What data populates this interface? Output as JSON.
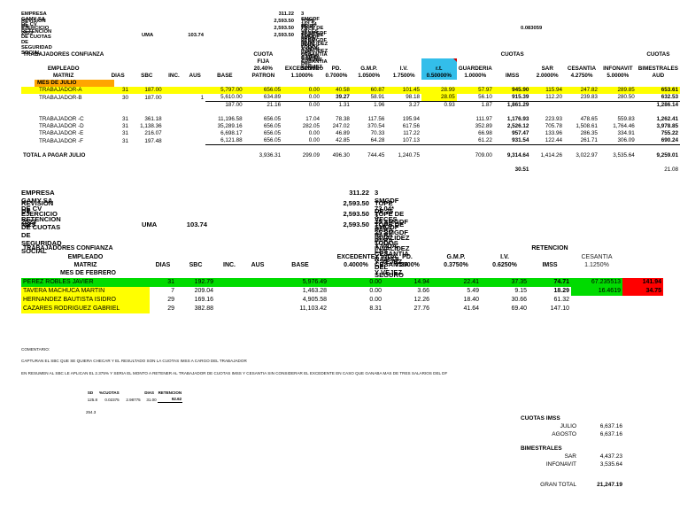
{
  "colors": {
    "highlight_yellow": "#FFFF00",
    "highlight_orange": "#FFA500",
    "highlight_blue": "#33BEEA",
    "highlight_green": "#00DB00",
    "highlight_red": "#FF0000"
  },
  "header1": {
    "company": "EMPRESA GAMY SA DE CV",
    "title": "REVISION DE RETENCION DE CUOTAS DE SEGURIDAD SOCIAL",
    "exercise": "EJERCICIO 2023",
    "uma_label": "UMA",
    "uma_value": "103.74",
    "amounts": [
      "311.22",
      "2,593.50",
      "2,593.50",
      "2,593.50"
    ],
    "notes": [
      "3 SMGDF 103.74 * 3",
      "TOPE DE 25 VECES SMGDF PARA TODOS LAS RAMAS DEL SEGURO",
      "TOPE DE 25 SMGDF PARA INVALIDEZ Y VIDA, CESANTIA Y VEJEZ",
      "TOPE DE 25 SMGDF PARA INVALIDEZ Y VIDA, CESANTIA Y VEJEZ"
    ],
    "factor": "0.083059"
  },
  "table1": {
    "name": "cuotas-julio-table",
    "widths": [
      90,
      28,
      38,
      24,
      24,
      44,
      44,
      44,
      34,
      40,
      40,
      40,
      42,
      42,
      38,
      40,
      42,
      46
    ],
    "group": {
      "0": "TRABAJADORES CONFIANZA",
      "6": "CUOTA",
      "13": "CUOTAS",
      "17": "CUOTAS"
    },
    "columns": [
      {
        "lines": [
          "EMPLEADO",
          "MATRIZ"
        ]
      },
      {
        "lines": [
          "DIAS"
        ]
      },
      {
        "lines": [
          "SBC"
        ]
      },
      {
        "lines": [
          "INC."
        ]
      },
      {
        "lines": [
          "AUS"
        ]
      },
      {
        "lines": [
          "BASE"
        ]
      },
      {
        "lines": [
          "FIJA",
          "20.40%",
          "PATRON"
        ]
      },
      {
        "lines": [
          "EXCEDENTE",
          "1.1000%"
        ]
      },
      {
        "lines": [
          "PD.",
          "0.7000%"
        ]
      },
      {
        "lines": [
          "G.M.P.",
          "1.0500%"
        ]
      },
      {
        "lines": [
          "I.V.",
          "1.7500%"
        ]
      },
      {
        "lines": [
          "r.t.",
          "0.50000%"
        ],
        "hl": 1
      },
      {
        "lines": [
          "GUARDERIA",
          "1.0000%"
        ]
      },
      {
        "lines": [
          "IMSS"
        ]
      },
      {
        "lines": [
          "SAR",
          "2.0000%"
        ]
      },
      {
        "lines": [
          "CESANTIA",
          "4.2750%"
        ]
      },
      {
        "lines": [
          "INFONAVIT",
          "5.0000%"
        ]
      },
      {
        "lines": [
          "BIMESTRALES",
          "AUD"
        ]
      }
    ],
    "section_label": "MES DE JULIO",
    "rows": [
      {
        "name": "row-trabajador-a",
        "bg": "yellow",
        "ind": 1,
        "cells": [
          "TRABAJADOR-A",
          "31",
          "187.00",
          "",
          "",
          "5,797.00",
          "656.05",
          "0.00",
          "40.58",
          "60.87",
          "101.45",
          "28.99",
          "57.97",
          {
            "v": "945.90",
            "b": 1
          },
          "115.94",
          "247.82",
          "289.85",
          {
            "v": "653.61",
            "b": 1
          }
        ]
      },
      {
        "name": "row-trabajador-b",
        "ind": 1,
        "cells": [
          "TRABAJADOR-B",
          "30",
          "187.00",
          "",
          "1",
          {
            "v": "5,610.00",
            "bb": 1
          },
          {
            "v": "634.89",
            "bb": 1
          },
          {
            "v": "0.00",
            "bb": 1
          },
          {
            "v": "39.27",
            "b": 1,
            "bb": 1
          },
          {
            "v": "58.91",
            "bb": 1
          },
          {
            "v": "98.18",
            "bb": 1
          },
          {
            "v": "28.05",
            "bg": "yellow",
            "bb": 1
          },
          {
            "v": "56.10",
            "bb": 1
          },
          {
            "v": "915.39",
            "b": 1,
            "bb": 1
          },
          {
            "v": "112.20",
            "bb": 1
          },
          {
            "v": "239.83",
            "bb": 1
          },
          {
            "v": "280.50",
            "bb": 1
          },
          {
            "v": "632.53",
            "b": 1,
            "bb": 1
          }
        ]
      },
      {
        "name": "row-diferencia-ab",
        "cells": [
          "",
          "",
          "",
          "",
          "",
          "187.00",
          "21.16",
          "0.00",
          "1.31",
          "1.96",
          "3.27",
          "0.93",
          "1.87",
          {
            "v": "1,861.29",
            "b": 1
          },
          "",
          "",
          "",
          {
            "v": "1,286.14",
            "b": 1
          }
        ]
      },
      {
        "name": "spacer-row",
        "cells": []
      },
      {
        "name": "row-trabajador-c",
        "ind": 1,
        "cells": [
          "TRABAJADOR -C",
          "31",
          "361.18",
          "",
          "",
          "11,196.58",
          "656.05",
          "17.04",
          "78.38",
          "117.56",
          "195.94",
          "",
          "111.97",
          {
            "v": "1,176.93",
            "b": 1
          },
          "223.93",
          "478.65",
          "559.83",
          {
            "v": "1,262.41",
            "b": 1
          }
        ]
      },
      {
        "name": "row-trabajador-d",
        "ind": 1,
        "cells": [
          "TRABAJADOR -D",
          "31",
          "1,138.36",
          "",
          "",
          "35,289.16",
          "656.05",
          "282.05",
          "247.02",
          "370.54",
          "617.56",
          "",
          "352.89",
          {
            "v": "2,526.12",
            "b": 1
          },
          "705.78",
          "1,508.61",
          "1,764.46",
          {
            "v": "3,978.85",
            "b": 1
          }
        ]
      },
      {
        "name": "row-trabajador-e",
        "ind": 1,
        "cells": [
          "TRABAJADOR -E",
          "31",
          "216.07",
          "",
          "",
          "6,698.17",
          "656.05",
          "0.00",
          "46.89",
          "70.33",
          "117.22",
          "",
          "66.98",
          {
            "v": "957.47",
            "b": 1
          },
          "133.96",
          "286.35",
          "334.91",
          {
            "v": "755.22",
            "b": 1
          }
        ]
      },
      {
        "name": "row-trabajador-f",
        "ind": 1,
        "cells": [
          "TRABAJADOR -F",
          "31",
          "197.48",
          "",
          "",
          {
            "v": "6,121.88",
            "bb": 1
          },
          {
            "v": "656.05",
            "bb": 1
          },
          {
            "v": "0.00",
            "bb": 1
          },
          {
            "v": "42.85",
            "bb": 1
          },
          {
            "v": "64.28",
            "bb": 1
          },
          {
            "v": "107.13",
            "bb": 1
          },
          {
            "v": "",
            "bb": 1
          },
          {
            "v": "61.22",
            "bb": 1
          },
          {
            "v": "931.54",
            "b": 1,
            "bb": 1
          },
          {
            "v": "122.44",
            "bb": 1
          },
          {
            "v": "261.71",
            "bb": 1
          },
          {
            "v": "306.09",
            "bb": 1
          },
          {
            "v": "690.24",
            "b": 1,
            "bb": 1
          }
        ]
      },
      {
        "name": "spacer-row",
        "cells": []
      },
      {
        "name": "row-total-julio",
        "cells": [
          {
            "v": "TOTAL A PAGAR JULIO",
            "b": 1
          },
          "",
          "",
          "",
          "",
          "",
          "3,936.31",
          "299.09",
          "496.30",
          "744.45",
          "1,240.75",
          "",
          "709.00",
          {
            "v": "9,314.64",
            "b": 1
          },
          "1,414.26",
          "3,022.97",
          "3,535.64",
          {
            "v": "9,259.01",
            "b": 1
          }
        ]
      },
      {
        "name": "spacer-row",
        "cells": []
      },
      {
        "name": "row-diferencia-total",
        "cells": [
          "",
          "",
          "",
          "",
          "",
          "",
          "",
          "",
          "",
          "",
          "",
          "",
          "",
          {
            "v": "30.51",
            "b": 1
          },
          "",
          "",
          "",
          "21.08"
        ]
      }
    ]
  },
  "header2": {
    "company": "EMPRESA GAMY SA DE CV",
    "title": "REVISION DE RETENCION DE CUOTAS DE SEGURIDAD SOCIAL",
    "exercise": "EJERCICIO 2023",
    "mes_label": "MES",
    "uma_label": "UMA",
    "uma_value": "103.74",
    "amounts": [
      "311.22",
      "2,593.50",
      "2,593.50",
      "2,593.50"
    ],
    "notes": [
      "3 SMGDF 73.04* 3",
      "TOPE DE 25 VECES SMGDF PARA TODOS LAS RAMAS DEL SEGURO",
      "TOPE DE 25 SMGDF PARA INVALIDEZ Y VIDA, CESANTIA Y VEJEZ",
      "TOPE DE 25 SMGDF PARA INVALIDEZ Y VIDA, CESANTIA Y VEJEZ"
    ]
  },
  "table2": {
    "name": "retencion-febrero-table",
    "widths": [
      145,
      30,
      44,
      32,
      32,
      64,
      62,
      54,
      56,
      54,
      48,
      58,
      46
    ],
    "group": {
      "0": "TRABAJADORES CONFIANZA",
      "10": "RETENCION"
    },
    "columns": [
      {
        "lines": [
          "EMPLEADO",
          "MATRIZ"
        ]
      },
      {
        "lines": [
          "DIAS"
        ]
      },
      {
        "lines": [
          "SBC"
        ]
      },
      {
        "lines": [
          "INC."
        ]
      },
      {
        "lines": [
          "AUS"
        ]
      },
      {
        "lines": [
          "BASE"
        ]
      },
      {
        "lines": [
          "EXCEDENTE",
          "0.4000%"
        ]
      },
      {
        "lines": [
          "PD.",
          "0.2500%"
        ]
      },
      {
        "lines": [
          "G.M.P.",
          "0.3750%"
        ]
      },
      {
        "lines": [
          "I.V.",
          "0.6250%"
        ]
      },
      {
        "lines": [
          "IMSS"
        ]
      },
      {
        "lines": [
          "CESANTIA",
          "1.1250%"
        ],
        "light": 1
      },
      {
        "lines": [
          ""
        ]
      }
    ],
    "section_label": "MES DE FEBRERO",
    "rows": [
      {
        "name": "row-perez-robles-javier",
        "bg": "green",
        "cells": [
          "PEREZ ROBLES JAVIER",
          "31",
          "192.79",
          "",
          "",
          "5,976.49",
          "0.00",
          "14.94",
          "22.41",
          "37.35",
          {
            "v": "74.71",
            "b": 1
          },
          "67.235513",
          {
            "v": "141.94",
            "b": 1,
            "bg": "red"
          }
        ]
      },
      {
        "name": "row-tavera-machuca-martin",
        "cells": [
          {
            "v": "TAVERA MACHUCA MARTIN",
            "bg": "yellow"
          },
          "7",
          "209.04",
          "",
          "",
          "1,463.28",
          "0.00",
          "3.66",
          "5.49",
          "9.15",
          {
            "v": "18.29",
            "b": 1
          },
          {
            "v": "16.4619",
            "bg": "green"
          },
          {
            "v": "34.75",
            "b": 1,
            "bg": "red"
          }
        ]
      },
      {
        "name": "row-hernandez-bautista-isidro",
        "cells": [
          {
            "v": "HERNANDEZ BAUTISTA ISIDRO",
            "bg": "yellow"
          },
          "29",
          "169.16",
          "",
          "",
          "4,905.58",
          "0.00",
          "12.26",
          "18.40",
          "30.66",
          "61.32",
          "",
          ""
        ]
      },
      {
        "name": "row-cazares-rodriguez-gabriel",
        "cells": [
          {
            "v": "CAZARES RODRIGUEZ GABRIEL",
            "bg": "yellow"
          },
          "29",
          "382.88",
          "",
          "",
          "11,103.42",
          "8.31",
          "27.76",
          "41.64",
          "69.40",
          "147.10",
          "",
          ""
        ]
      }
    ]
  },
  "commentary": {
    "title": "COMENTARIO:",
    "line1": "CAPTURAN EL SBC QUE SE QUIERA CHECAR Y EL RESULTADO SON LA CUOTAS IMSS A CARGO DEL TRABAJADOR",
    "line2": "EN RESUMEN AL SBC LE APLICAN EL 2.375% Y SERIA EL MONTO A RETENER AL TRABAJADOR DE CUOTAS IMSS Y CESANTIA SIN CONSIDERAR EL EXCEDENTE EN CASO QUE GANABA MAS DE TRES SALARIOS DEL DF"
  },
  "minitable": {
    "name": "retention-check-table",
    "widths": [
      18,
      22,
      24,
      18,
      26
    ],
    "allnum": 1,
    "columns": [
      {
        "lines": [
          "SD"
        ]
      },
      {
        "lines": [
          "%CUOTAS"
        ]
      },
      {
        "lines": [
          ""
        ]
      },
      {
        "lines": [
          "DIAS"
        ]
      },
      {
        "lines": [
          "RETENCION"
        ]
      }
    ],
    "rows": [
      {
        "name": "retention-calc-row",
        "cells": [
          "125.8",
          "0.02375",
          "2.98775",
          "31.00",
          {
            "v": "92.62",
            "b": 1,
            "bb": 1
          }
        ]
      }
    ]
  },
  "note_below": "254.3",
  "summary": {
    "imss_title": "CUOTAS IMSS",
    "imss_rows": [
      {
        "label": "JULIO",
        "value": "6,637.16"
      },
      {
        "label": "AGOSTO",
        "value": "6,637.16"
      }
    ],
    "bim_title": "BIMESTRALES",
    "bim_rows": [
      {
        "label": "SAR",
        "value": "4,437.23"
      },
      {
        "label": "INFONAVIT",
        "value": "3,535.64"
      }
    ],
    "total_label": "GRAN TOTAL",
    "total_value": "21,247.19"
  }
}
